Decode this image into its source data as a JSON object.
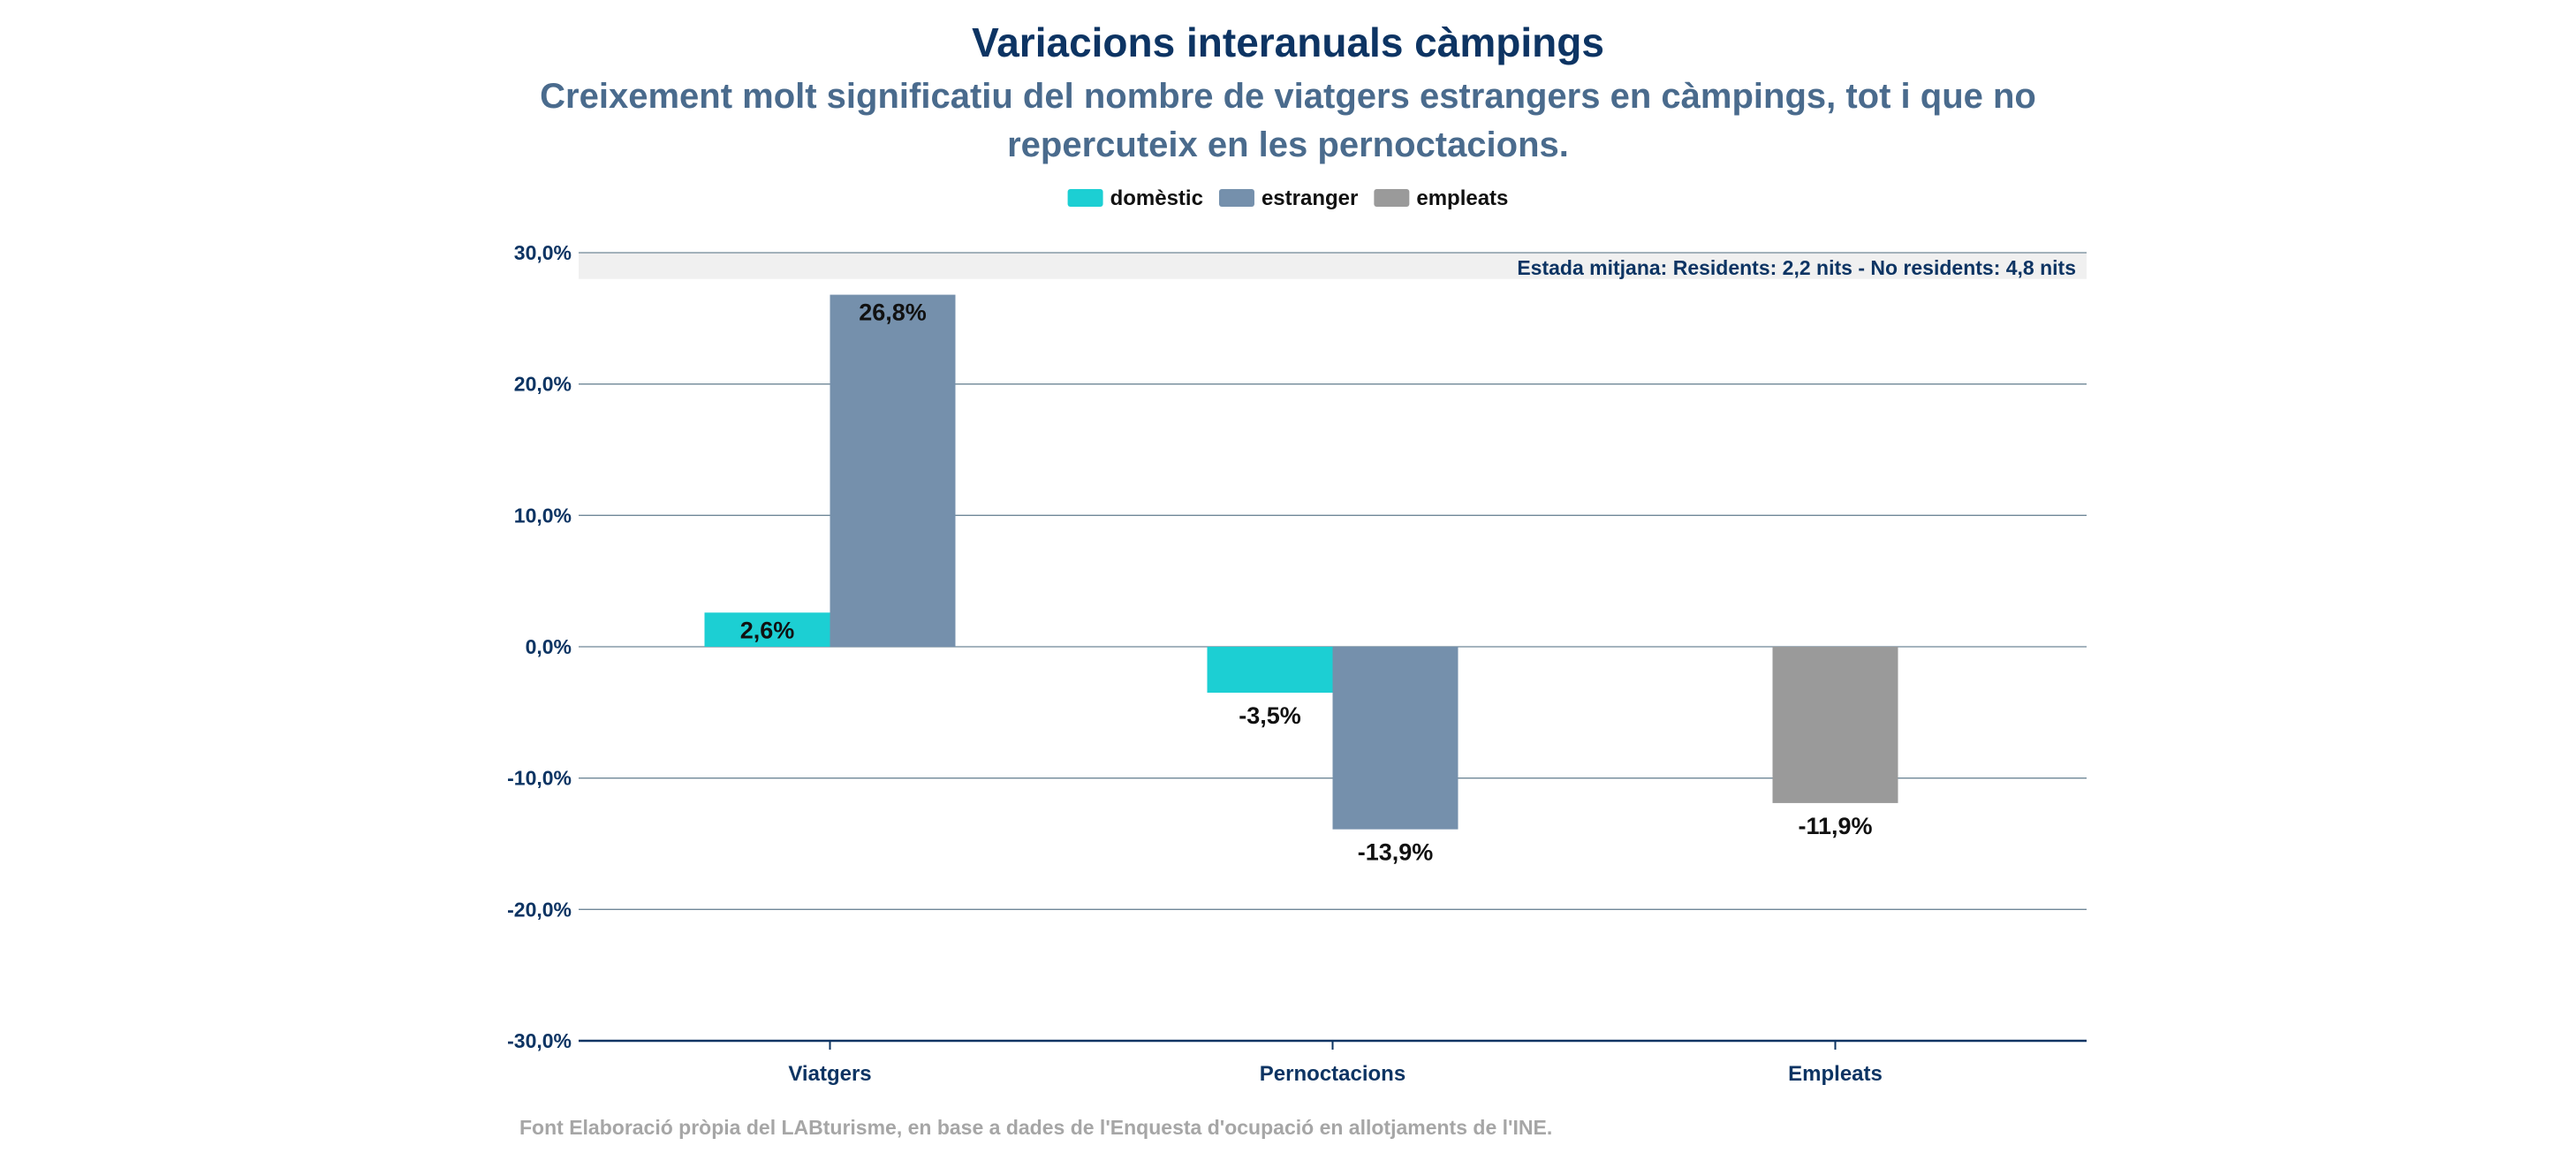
{
  "colors": {
    "domestic": "#1ccfd3",
    "foreign": "#7590ac",
    "employees": "#9a9a9a",
    "title": "#0d3463",
    "subtitle": "#4a6b8d",
    "grid": "#6f8797",
    "axis": "#0d3463",
    "banner_bg": "#f0f0f0",
    "source": "#a6a6a6"
  },
  "chart_data": {
    "type": "bar",
    "title": "Variacions interanuals càmpings",
    "subtitle_lines": [
      "Creixement molt significatiu del nombre de viatgers estrangers en càmpings, tot i que no",
      "repercuteix en les pernoctacions."
    ],
    "categories": [
      "Viatgers",
      "Pernoctacions",
      "Empleats"
    ],
    "series": [
      {
        "name": "domèstic",
        "key": "domestic",
        "values": [
          2.6,
          -3.5,
          null
        ],
        "labels": [
          "2,6%",
          "-3,5%",
          ""
        ]
      },
      {
        "name": "estranger",
        "key": "foreign",
        "values": [
          26.8,
          -13.9,
          null
        ],
        "labels": [
          "26,8%",
          "-13,9%",
          ""
        ]
      },
      {
        "name": "empleats",
        "key": "employees",
        "values": [
          null,
          null,
          -11.9
        ],
        "labels": [
          "",
          "",
          "-11,9%"
        ]
      }
    ],
    "ylim": [
      -30,
      30
    ],
    "yticks": [
      30,
      20,
      10,
      0,
      -10,
      -20,
      -30
    ],
    "ytick_labels": [
      "30,0%",
      "20,0%",
      "10,0%",
      "0,0%",
      "-10,0%",
      "-20,0%",
      "-30,0%"
    ],
    "grid": true,
    "legend_position": "top-center",
    "annotation": "Estada mitjana: Residents: 2,2 nits - No residents: 4,8 nits"
  },
  "source": "Font Elaboració pròpia del LABturisme, en base a dades de l'Enquesta d'ocupació en allotjaments de l'INE."
}
